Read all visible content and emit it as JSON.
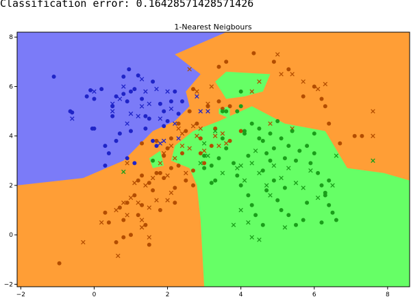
{
  "console_output": "Classification error: 0.16428571428571426",
  "chart_data": {
    "type": "scatter",
    "title": "1-Nearest Neigbours",
    "xlim": [
      -2.1,
      8.6
    ],
    "ylim": [
      -2.1,
      8.2
    ],
    "x_ticks": [
      -2,
      0,
      2,
      4,
      6,
      8
    ],
    "y_ticks": [
      -2,
      0,
      2,
      4,
      6,
      8
    ],
    "x_tick_labels": [
      "−2",
      "0",
      "2",
      "4",
      "6",
      "8"
    ],
    "y_tick_labels": [
      "−2",
      "0",
      "2",
      "4",
      "6",
      "8"
    ],
    "grid": false,
    "region_colors": {
      "blue": "#7b7bf8",
      "orange": "#ff9e36",
      "green": "#66ff66"
    },
    "class_colors": {
      "blue": "#1f24c7",
      "orange": "#b34d00",
      "green": "#1a9e1a"
    },
    "regions": {
      "blue": [
        [
          -2.1,
          8.2
        ],
        [
          3.6,
          8.2
        ],
        [
          2.2,
          7.3
        ],
        [
          2.9,
          6.5
        ],
        [
          2.5,
          5.8
        ],
        [
          2.6,
          5.2
        ],
        [
          2.2,
          4.6
        ],
        [
          1.6,
          4.2
        ],
        [
          0.8,
          3.0
        ],
        [
          -0.3,
          2.3
        ],
        [
          -2.1,
          2.0
        ]
      ],
      "green": [
        [
          2.7,
          4.2
        ],
        [
          3.4,
          4.6
        ],
        [
          4.3,
          5.2
        ],
        [
          5.2,
          4.5
        ],
        [
          6.3,
          4.2
        ],
        [
          6.9,
          2.7
        ],
        [
          7.9,
          2.5
        ],
        [
          8.6,
          2.2
        ],
        [
          8.6,
          -2.1
        ],
        [
          3.0,
          -2.1
        ],
        [
          2.9,
          0.6
        ],
        [
          2.8,
          2.0
        ],
        [
          2.6,
          2.7
        ],
        [
          2.1,
          3.0
        ],
        [
          2.2,
          3.6
        ]
      ],
      "green_islands": [
        [
          [
            3.3,
            6.2
          ],
          [
            3.6,
            6.6
          ],
          [
            4.8,
            6.5
          ],
          [
            4.6,
            5.8
          ],
          [
            4.1,
            5.6
          ],
          [
            3.6,
            5.5
          ]
        ],
        [
          [
            1.5,
            3.1
          ],
          [
            1.8,
            3.4
          ],
          [
            1.9,
            2.8
          ],
          [
            1.6,
            2.7
          ]
        ],
        [
          [
            3.4,
            5.1
          ],
          [
            3.7,
            5.2
          ],
          [
            3.7,
            4.7
          ],
          [
            3.4,
            4.9
          ]
        ]
      ]
    },
    "series": [
      {
        "name": "",
        "class": "blue",
        "marker": "o",
        "points": [
          [
            -1.1,
            6.4
          ],
          [
            -0.65,
            5.0
          ],
          [
            -0.6,
            4.95
          ],
          [
            -0.05,
            4.3
          ],
          [
            0.0,
            4.3
          ],
          [
            -0.2,
            5.6
          ],
          [
            -0.1,
            5.85
          ],
          [
            0.0,
            5.5
          ],
          [
            0.2,
            5.9
          ],
          [
            0.3,
            3.6
          ],
          [
            0.4,
            3.3
          ],
          [
            0.5,
            4.8
          ],
          [
            0.5,
            5.2
          ],
          [
            0.6,
            5.6
          ],
          [
            0.6,
            3.8
          ],
          [
            0.7,
            4.1
          ],
          [
            0.3,
            2.8
          ],
          [
            0.8,
            6.4
          ],
          [
            0.8,
            5.7
          ],
          [
            0.9,
            5.4
          ],
          [
            0.9,
            3.1
          ],
          [
            0.95,
            6.7
          ],
          [
            1.0,
            5.8
          ],
          [
            1.0,
            4.2
          ],
          [
            1.1,
            5.9
          ],
          [
            1.2,
            6.45
          ],
          [
            1.3,
            5.5
          ],
          [
            1.4,
            4.8
          ],
          [
            1.4,
            4.3
          ],
          [
            1.5,
            4.7
          ],
          [
            1.6,
            6.2
          ],
          [
            1.6,
            3.8
          ],
          [
            1.7,
            3.6
          ],
          [
            1.8,
            5.3
          ],
          [
            1.9,
            5.0
          ],
          [
            1.9,
            4.4
          ],
          [
            2.0,
            4.6
          ],
          [
            2.1,
            5.4
          ],
          [
            2.2,
            5.8
          ],
          [
            2.3,
            4.9
          ],
          [
            2.4,
            5.4
          ],
          [
            1.1,
            2.9
          ]
        ]
      },
      {
        "name": "",
        "class": "blue",
        "marker": "x",
        "points": [
          [
            -0.6,
            4.7
          ],
          [
            0.0,
            5.8
          ],
          [
            0.5,
            5.3
          ],
          [
            0.7,
            5.5
          ],
          [
            0.8,
            6.0
          ],
          [
            0.9,
            4.5
          ],
          [
            1.0,
            4.9
          ],
          [
            1.2,
            4.8
          ],
          [
            1.3,
            5.2
          ],
          [
            1.4,
            5.8
          ],
          [
            1.5,
            5.3
          ],
          [
            1.7,
            5.9
          ],
          [
            1.8,
            4.7
          ],
          [
            1.8,
            3.7
          ],
          [
            1.9,
            3.8
          ],
          [
            2.0,
            5.8
          ],
          [
            2.1,
            5.1
          ],
          [
            2.2,
            4.5
          ],
          [
            2.3,
            3.9
          ],
          [
            2.8,
            5.6
          ],
          [
            2.9,
            5.0
          ],
          [
            3.1,
            5.0
          ],
          [
            1.3,
            6.3
          ],
          [
            0.5,
            5.0
          ]
        ]
      },
      {
        "name": "",
        "class": "orange",
        "marker": "o",
        "points": [
          [
            -0.95,
            -1.15
          ],
          [
            0.3,
            0.9
          ],
          [
            0.4,
            0.5
          ],
          [
            0.6,
            -0.3
          ],
          [
            0.7,
            1.1
          ],
          [
            0.8,
            0.6
          ],
          [
            0.9,
            1.3
          ],
          [
            1.0,
            0.0
          ],
          [
            1.1,
            1.6
          ],
          [
            1.2,
            2.2
          ],
          [
            1.3,
            1.2
          ],
          [
            1.4,
            0.4
          ],
          [
            1.5,
            2.1
          ],
          [
            1.5,
            -0.4
          ],
          [
            1.6,
            1.8
          ],
          [
            1.7,
            2.5
          ],
          [
            1.8,
            1.0
          ],
          [
            1.9,
            2.3
          ],
          [
            2.0,
            3.5
          ],
          [
            2.1,
            3.9
          ],
          [
            2.2,
            1.9
          ],
          [
            2.3,
            2.8
          ],
          [
            2.4,
            3.3
          ],
          [
            2.5,
            4.2
          ],
          [
            2.6,
            5.0
          ],
          [
            2.7,
            5.9
          ],
          [
            2.8,
            4.5
          ],
          [
            2.9,
            3.9
          ],
          [
            2.9,
            3.3
          ],
          [
            3.0,
            2.9
          ],
          [
            3.2,
            3.6
          ],
          [
            3.3,
            4.3
          ],
          [
            3.4,
            5.4
          ],
          [
            3.5,
            5.1
          ],
          [
            2.7,
            2.6
          ],
          [
            2.5,
            2.2
          ],
          [
            2.1,
            2.7
          ],
          [
            1.9,
            3.2
          ],
          [
            1.7,
            3.8
          ],
          [
            1.3,
            3.7
          ],
          [
            3.4,
            6.8
          ],
          [
            3.7,
            3.8
          ],
          [
            4.0,
            4.2
          ],
          [
            3.6,
            7.0
          ],
          [
            4.35,
            7.35
          ],
          [
            4.9,
            7.0
          ],
          [
            5.3,
            6.7
          ],
          [
            5.7,
            5.6
          ],
          [
            6.0,
            6.0
          ],
          [
            6.2,
            5.5
          ],
          [
            6.3,
            5.2
          ],
          [
            6.4,
            4.5
          ],
          [
            6.7,
            3.7
          ],
          [
            7.1,
            4.0
          ],
          [
            7.3,
            4.0
          ],
          [
            0.8,
            -0.1
          ],
          [
            1.2,
            0.8
          ],
          [
            1.3,
            2.4
          ],
          [
            2.3,
            4.5
          ],
          [
            3.1,
            5.2
          ],
          [
            3.7,
            5.2
          ],
          [
            2.2,
            1.3
          ],
          [
            2.7,
            2.0
          ],
          [
            1.8,
            2.5
          ]
        ]
      },
      {
        "name": "",
        "class": "orange",
        "marker": "x",
        "points": [
          [
            -0.3,
            -0.3
          ],
          [
            0.2,
            0.5
          ],
          [
            0.6,
            1.0
          ],
          [
            0.8,
            1.3
          ],
          [
            0.9,
            0.8
          ],
          [
            1.0,
            1.5
          ],
          [
            1.1,
            2.1
          ],
          [
            1.2,
            1.3
          ],
          [
            1.3,
            0.3
          ],
          [
            1.4,
            2.0
          ],
          [
            1.5,
            1.1
          ],
          [
            1.6,
            2.3
          ],
          [
            1.7,
            1.4
          ],
          [
            1.8,
            2.9
          ],
          [
            1.9,
            3.3
          ],
          [
            2.0,
            2.4
          ],
          [
            2.1,
            3.6
          ],
          [
            2.2,
            3.1
          ],
          [
            2.3,
            4.3
          ],
          [
            2.4,
            3.6
          ],
          [
            2.5,
            2.5
          ],
          [
            2.6,
            3.5
          ],
          [
            2.7,
            4.4
          ],
          [
            2.8,
            4.0
          ],
          [
            2.9,
            4.3
          ],
          [
            3.0,
            3.4
          ],
          [
            3.1,
            5.3
          ],
          [
            3.2,
            6.0
          ],
          [
            3.3,
            4.0
          ],
          [
            3.4,
            3.6
          ],
          [
            0.65,
            -0.85
          ],
          [
            1.3,
            0.6
          ],
          [
            2.0,
            1.4
          ],
          [
            2.1,
            1.7
          ],
          [
            1.5,
            -0.1
          ],
          [
            4.3,
            5.8
          ],
          [
            4.5,
            6.2
          ],
          [
            5.0,
            7.3
          ],
          [
            5.1,
            6.5
          ],
          [
            5.4,
            6.5
          ],
          [
            5.7,
            6.2
          ],
          [
            6.1,
            5.9
          ],
          [
            6.3,
            6.1
          ],
          [
            7.6,
            4.0
          ],
          [
            7.6,
            5.0
          ],
          [
            3.5,
            4.1
          ],
          [
            3.6,
            3.7
          ],
          [
            4.8,
            4.5
          ],
          [
            5.4,
            4.3
          ],
          [
            2.6,
            6.7
          ],
          [
            2.8,
            5.8
          ],
          [
            2.4,
            4.1
          ],
          [
            0.9,
            2.9
          ]
        ]
      },
      {
        "name": "",
        "class": "green",
        "marker": "o",
        "points": [
          [
            1.6,
            3.0
          ],
          [
            3.5,
            5.0
          ],
          [
            3.6,
            5.0
          ],
          [
            4.0,
            5.8
          ],
          [
            4.0,
            5.2
          ],
          [
            4.1,
            4.2
          ],
          [
            4.3,
            4.5
          ],
          [
            4.5,
            4.3
          ],
          [
            4.6,
            3.8
          ],
          [
            4.7,
            3.3
          ],
          [
            4.8,
            4.1
          ],
          [
            4.9,
            3.5
          ],
          [
            5.0,
            4.6
          ],
          [
            5.1,
            3.9
          ],
          [
            5.2,
            3.1
          ],
          [
            5.3,
            3.6
          ],
          [
            5.4,
            4.2
          ],
          [
            5.5,
            3.0
          ],
          [
            5.6,
            3.4
          ],
          [
            5.8,
            3.6
          ],
          [
            5.9,
            2.9
          ],
          [
            6.0,
            4.1
          ],
          [
            6.0,
            3.3
          ],
          [
            6.1,
            2.5
          ],
          [
            6.2,
            2.0
          ],
          [
            6.3,
            1.6
          ],
          [
            6.4,
            1.2
          ],
          [
            6.5,
            0.9
          ],
          [
            6.6,
            0.6
          ],
          [
            3.2,
            2.8
          ],
          [
            3.4,
            3.1
          ],
          [
            3.6,
            3.5
          ],
          [
            3.8,
            2.9
          ],
          [
            3.9,
            2.4
          ],
          [
            4.0,
            2.0
          ],
          [
            4.2,
            1.6
          ],
          [
            4.3,
            1.2
          ],
          [
            4.4,
            0.8
          ],
          [
            4.6,
            0.4
          ],
          [
            4.7,
            1.8
          ],
          [
            4.9,
            2.2
          ],
          [
            5.0,
            1.4
          ],
          [
            5.1,
            1.0
          ],
          [
            5.2,
            1.9
          ],
          [
            5.3,
            0.8
          ],
          [
            5.5,
            0.4
          ],
          [
            5.7,
            0.6
          ],
          [
            5.8,
            1.3
          ],
          [
            6.3,
            1.7
          ],
          [
            4.1,
            4.1
          ],
          [
            4.5,
            3.9
          ],
          [
            3.5,
            3.9
          ],
          [
            3.2,
            2.1
          ],
          [
            3.0,
            2.7
          ],
          [
            3.9,
            5.0
          ],
          [
            4.2,
            3.2
          ],
          [
            4.8,
            3.0
          ],
          [
            6.2,
            0.5
          ],
          [
            3.0,
            3.2
          ],
          [
            4.6,
            2.6
          ],
          [
            3.3,
            2.2
          ],
          [
            6.4,
            2.2
          ]
        ]
      },
      {
        "name": "",
        "class": "green",
        "marker": "x",
        "points": [
          [
            0.8,
            2.55
          ],
          [
            3.9,
            2.7
          ],
          [
            4.1,
            2.2
          ],
          [
            4.3,
            2.9
          ],
          [
            4.5,
            2.5
          ],
          [
            4.7,
            2.0
          ],
          [
            4.9,
            2.8
          ],
          [
            5.1,
            2.3
          ],
          [
            5.3,
            2.7
          ],
          [
            5.5,
            2.1
          ],
          [
            5.7,
            1.9
          ],
          [
            5.9,
            2.6
          ],
          [
            6.1,
            1.5
          ],
          [
            4.0,
            1.0
          ],
          [
            4.2,
            0.5
          ],
          [
            4.5,
            -0.2
          ],
          [
            3.8,
            0.4
          ],
          [
            4.0,
            2.8
          ],
          [
            6.5,
            2.0
          ],
          [
            6.6,
            3.2
          ],
          [
            7.6,
            3.0
          ],
          [
            3.3,
            4.2
          ],
          [
            4.4,
            3.4
          ],
          [
            4.8,
            1.6
          ],
          [
            5.2,
            0.3
          ],
          [
            3.5,
            2.5
          ],
          [
            3.1,
            3.2
          ],
          [
            2.9,
            2.9
          ],
          [
            4.3,
            -0.1
          ],
          [
            3.0,
            3.7
          ]
        ]
      }
    ]
  }
}
